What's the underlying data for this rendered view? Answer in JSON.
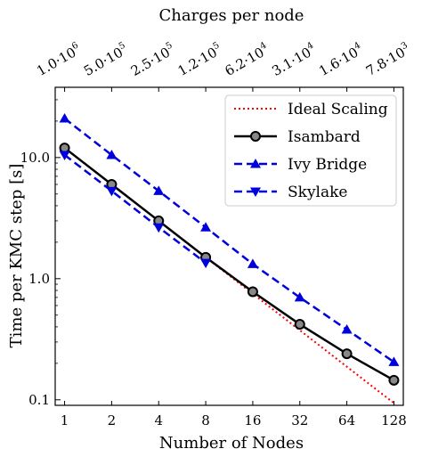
{
  "chart_data": {
    "type": "line",
    "xscale": "log2",
    "yscale": "log10",
    "x": [
      1,
      2,
      4,
      8,
      16,
      32,
      64,
      128
    ],
    "xtick_labels": [
      "1",
      "2",
      "4",
      "8",
      "16",
      "32",
      "64",
      "128"
    ],
    "xlabel": "Number of Nodes",
    "top_axis": {
      "label": "Charges per node",
      "tick_labels": [
        {
          "m": "1.0",
          "e": "6"
        },
        {
          "m": "5.0",
          "e": "5"
        },
        {
          "m": "2.5",
          "e": "5"
        },
        {
          "m": "1.2",
          "e": "5"
        },
        {
          "m": "6.2",
          "e": "4"
        },
        {
          "m": "3.1",
          "e": "4"
        },
        {
          "m": "1.6",
          "e": "4"
        },
        {
          "m": "7.8",
          "e": "3"
        }
      ]
    },
    "ylabel_main": "Time per KMC step ",
    "ylabel_unit": "[s]",
    "yticks": [
      0.1,
      1.0,
      10.0
    ],
    "ytick_labels": [
      "0.1",
      "1.0",
      "10.0"
    ],
    "ylim": [
      0.09,
      38
    ],
    "grid": false,
    "legend_position": "top-right",
    "series": [
      {
        "name": "Ideal Scaling",
        "color": "#ff0000",
        "style": "dotted",
        "marker": "none",
        "values": [
          12.0,
          6.0,
          3.0,
          1.5,
          0.75,
          0.375,
          0.1875,
          0.094
        ]
      },
      {
        "name": "Isambard",
        "color": "#000000",
        "style": "solid",
        "marker": "circle",
        "values": [
          12.0,
          6.0,
          3.0,
          1.5,
          0.78,
          0.42,
          0.24,
          0.145
        ]
      },
      {
        "name": "Ivy Bridge",
        "color": "#0000dd",
        "style": "dashed",
        "marker": "triangle-up",
        "values": [
          21.0,
          10.5,
          5.3,
          2.65,
          1.32,
          0.7,
          0.38,
          0.205
        ]
      },
      {
        "name": "Skylake",
        "color": "#0000dd",
        "style": "dashed",
        "marker": "triangle-down",
        "values": [
          10.5,
          5.3,
          2.65,
          1.35,
          null,
          null,
          null,
          null
        ]
      }
    ]
  }
}
